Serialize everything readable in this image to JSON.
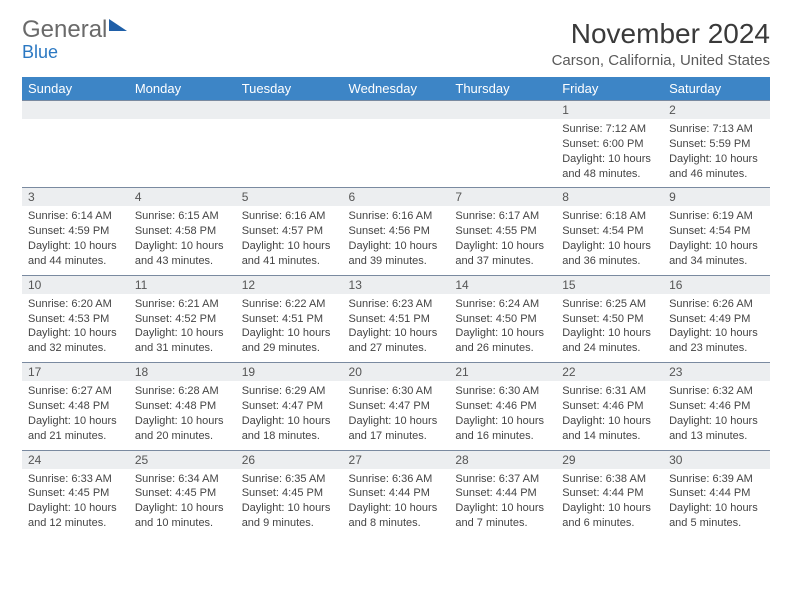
{
  "brand": {
    "word1": "General",
    "word2": "Blue"
  },
  "title": "November 2024",
  "location": "Carson, California, United States",
  "colors": {
    "header_bg": "#3d85c6",
    "header_fg": "#ffffff",
    "daynum_bg": "#eceef0",
    "daynum_border": "#7a8aa0",
    "text": "#444444",
    "title": "#3a3a3a",
    "brand_grey": "#6a6a6a",
    "brand_blue": "#2b78c2"
  },
  "weekdays": [
    "Sunday",
    "Monday",
    "Tuesday",
    "Wednesday",
    "Thursday",
    "Friday",
    "Saturday"
  ],
  "weeks": [
    [
      null,
      null,
      null,
      null,
      null,
      {
        "n": "1",
        "sr": "7:12 AM",
        "ss": "6:00 PM",
        "dl": "10 hours and 48 minutes."
      },
      {
        "n": "2",
        "sr": "7:13 AM",
        "ss": "5:59 PM",
        "dl": "10 hours and 46 minutes."
      }
    ],
    [
      {
        "n": "3",
        "sr": "6:14 AM",
        "ss": "4:59 PM",
        "dl": "10 hours and 44 minutes."
      },
      {
        "n": "4",
        "sr": "6:15 AM",
        "ss": "4:58 PM",
        "dl": "10 hours and 43 minutes."
      },
      {
        "n": "5",
        "sr": "6:16 AM",
        "ss": "4:57 PM",
        "dl": "10 hours and 41 minutes."
      },
      {
        "n": "6",
        "sr": "6:16 AM",
        "ss": "4:56 PM",
        "dl": "10 hours and 39 minutes."
      },
      {
        "n": "7",
        "sr": "6:17 AM",
        "ss": "4:55 PM",
        "dl": "10 hours and 37 minutes."
      },
      {
        "n": "8",
        "sr": "6:18 AM",
        "ss": "4:54 PM",
        "dl": "10 hours and 36 minutes."
      },
      {
        "n": "9",
        "sr": "6:19 AM",
        "ss": "4:54 PM",
        "dl": "10 hours and 34 minutes."
      }
    ],
    [
      {
        "n": "10",
        "sr": "6:20 AM",
        "ss": "4:53 PM",
        "dl": "10 hours and 32 minutes."
      },
      {
        "n": "11",
        "sr": "6:21 AM",
        "ss": "4:52 PM",
        "dl": "10 hours and 31 minutes."
      },
      {
        "n": "12",
        "sr": "6:22 AM",
        "ss": "4:51 PM",
        "dl": "10 hours and 29 minutes."
      },
      {
        "n": "13",
        "sr": "6:23 AM",
        "ss": "4:51 PM",
        "dl": "10 hours and 27 minutes."
      },
      {
        "n": "14",
        "sr": "6:24 AM",
        "ss": "4:50 PM",
        "dl": "10 hours and 26 minutes."
      },
      {
        "n": "15",
        "sr": "6:25 AM",
        "ss": "4:50 PM",
        "dl": "10 hours and 24 minutes."
      },
      {
        "n": "16",
        "sr": "6:26 AM",
        "ss": "4:49 PM",
        "dl": "10 hours and 23 minutes."
      }
    ],
    [
      {
        "n": "17",
        "sr": "6:27 AM",
        "ss": "4:48 PM",
        "dl": "10 hours and 21 minutes."
      },
      {
        "n": "18",
        "sr": "6:28 AM",
        "ss": "4:48 PM",
        "dl": "10 hours and 20 minutes."
      },
      {
        "n": "19",
        "sr": "6:29 AM",
        "ss": "4:47 PM",
        "dl": "10 hours and 18 minutes."
      },
      {
        "n": "20",
        "sr": "6:30 AM",
        "ss": "4:47 PM",
        "dl": "10 hours and 17 minutes."
      },
      {
        "n": "21",
        "sr": "6:30 AM",
        "ss": "4:46 PM",
        "dl": "10 hours and 16 minutes."
      },
      {
        "n": "22",
        "sr": "6:31 AM",
        "ss": "4:46 PM",
        "dl": "10 hours and 14 minutes."
      },
      {
        "n": "23",
        "sr": "6:32 AM",
        "ss": "4:46 PM",
        "dl": "10 hours and 13 minutes."
      }
    ],
    [
      {
        "n": "24",
        "sr": "6:33 AM",
        "ss": "4:45 PM",
        "dl": "10 hours and 12 minutes."
      },
      {
        "n": "25",
        "sr": "6:34 AM",
        "ss": "4:45 PM",
        "dl": "10 hours and 10 minutes."
      },
      {
        "n": "26",
        "sr": "6:35 AM",
        "ss": "4:45 PM",
        "dl": "10 hours and 9 minutes."
      },
      {
        "n": "27",
        "sr": "6:36 AM",
        "ss": "4:44 PM",
        "dl": "10 hours and 8 minutes."
      },
      {
        "n": "28",
        "sr": "6:37 AM",
        "ss": "4:44 PM",
        "dl": "10 hours and 7 minutes."
      },
      {
        "n": "29",
        "sr": "6:38 AM",
        "ss": "4:44 PM",
        "dl": "10 hours and 6 minutes."
      },
      {
        "n": "30",
        "sr": "6:39 AM",
        "ss": "4:44 PM",
        "dl": "10 hours and 5 minutes."
      }
    ]
  ],
  "labels": {
    "sunrise": "Sunrise:",
    "sunset": "Sunset:",
    "daylight": "Daylight:"
  }
}
